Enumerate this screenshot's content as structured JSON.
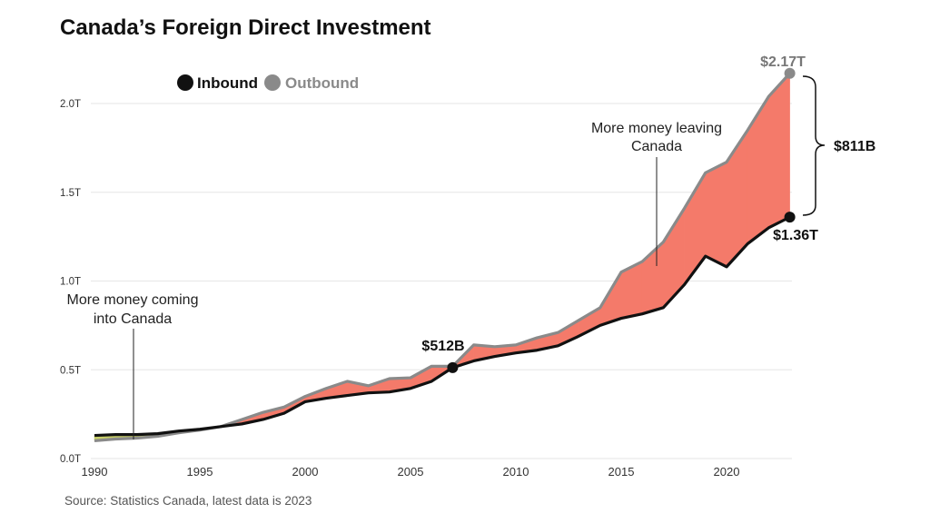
{
  "chart_data": {
    "type": "area",
    "title": "Canada’s Foreign Direct Investment",
    "xlabel": "",
    "ylabel": "",
    "xlim": [
      1990,
      2023
    ],
    "ylim": [
      0,
      2.0
    ],
    "y_ticks": [
      "0.0T",
      "0.5T",
      "1.0T",
      "1.5T",
      "2.0T"
    ],
    "y_tick_values": [
      0,
      0.5,
      1.0,
      1.5,
      2.0
    ],
    "x_ticks": [
      "1990",
      "1995",
      "2000",
      "2005",
      "2010",
      "2015",
      "2020"
    ],
    "x_tick_values": [
      1990,
      1995,
      2000,
      2005,
      2010,
      2015,
      2020
    ],
    "grid": true,
    "legend_position": "top-left",
    "units": "trillions CAD",
    "x": [
      1990,
      1991,
      1992,
      1993,
      1994,
      1995,
      1996,
      1997,
      1998,
      1999,
      2000,
      2001,
      2002,
      2003,
      2004,
      2005,
      2006,
      2007,
      2008,
      2009,
      2010,
      2011,
      2012,
      2013,
      2014,
      2015,
      2016,
      2017,
      2018,
      2019,
      2020,
      2021,
      2022,
      2023
    ],
    "series": [
      {
        "name": "Inbound",
        "color": "#111111",
        "values": [
          0.13,
          0.135,
          0.135,
          0.14,
          0.155,
          0.165,
          0.18,
          0.195,
          0.22,
          0.255,
          0.32,
          0.34,
          0.355,
          0.37,
          0.375,
          0.395,
          0.435,
          0.512,
          0.55,
          0.575,
          0.595,
          0.61,
          0.635,
          0.69,
          0.75,
          0.79,
          0.815,
          0.85,
          0.98,
          1.14,
          1.08,
          1.21,
          1.3,
          1.36
        ]
      },
      {
        "name": "Outbound",
        "color": "#8a8a8a",
        "values": [
          0.1,
          0.11,
          0.115,
          0.125,
          0.145,
          0.16,
          0.18,
          0.22,
          0.26,
          0.29,
          0.35,
          0.395,
          0.435,
          0.41,
          0.45,
          0.455,
          0.52,
          0.52,
          0.64,
          0.63,
          0.64,
          0.68,
          0.71,
          0.78,
          0.85,
          1.05,
          1.11,
          1.22,
          1.41,
          1.61,
          1.67,
          1.85,
          2.04,
          2.17
        ]
      }
    ],
    "fill_colors": {
      "outbound_higher": "#f47a6a",
      "inbound_higher": "#c8cf6a"
    },
    "annotations": {
      "coming": [
        "More money coming",
        "into Canada"
      ],
      "leaving": [
        "More money leaving",
        "Canada"
      ],
      "label_2007": "$512B",
      "label_outbound_2023": "$2.17T",
      "label_inbound_2023": "$1.36T",
      "gap_label": "$811B"
    },
    "source": "Source: Statistics Canada, latest data is 2023"
  }
}
